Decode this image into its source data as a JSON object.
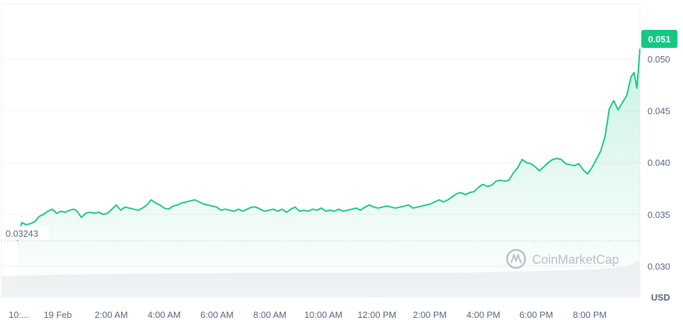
{
  "chart_data": {
    "type": "area",
    "currency": "USD",
    "open_price_label": "0.03243",
    "last_price_label": "0.051",
    "watermark": "CoinMarketCap",
    "ylim": [
      0.027,
      0.0535
    ],
    "y_ticks": [
      {
        "value": 0.05,
        "label": "0.050"
      },
      {
        "value": 0.045,
        "label": "0.045"
      },
      {
        "value": 0.04,
        "label": "0.040"
      },
      {
        "value": 0.035,
        "label": "0.035"
      },
      {
        "value": 0.03,
        "label": "0.030"
      }
    ],
    "x_ticks": [
      {
        "hours": 0.35,
        "label": "10:..."
      },
      {
        "hours": 2.0,
        "label": "19 Feb"
      },
      {
        "hours": 4.0,
        "label": "2:00 AM"
      },
      {
        "hours": 6.0,
        "label": "4:00 AM"
      },
      {
        "hours": 8.0,
        "label": "6:00 AM"
      },
      {
        "hours": 10.0,
        "label": "8:00 AM"
      },
      {
        "hours": 12.0,
        "label": "10:00 AM"
      },
      {
        "hours": 14.0,
        "label": "12:00 PM"
      },
      {
        "hours": 16.0,
        "label": "2:00 PM"
      },
      {
        "hours": 18.0,
        "label": "4:00 PM"
      },
      {
        "hours": 20.0,
        "label": "6:00 PM"
      },
      {
        "hours": 22.0,
        "label": "8:00 PM"
      }
    ],
    "price_series": [
      [
        0.0,
        0.03243
      ],
      [
        0.15,
        0.0342
      ],
      [
        0.3,
        0.034
      ],
      [
        0.45,
        0.0341
      ],
      [
        0.6,
        0.0343
      ],
      [
        0.75,
        0.0348
      ],
      [
        0.9,
        0.035
      ],
      [
        1.05,
        0.0353
      ],
      [
        1.2,
        0.0355
      ],
      [
        1.35,
        0.0351
      ],
      [
        1.5,
        0.0353
      ],
      [
        1.65,
        0.0352
      ],
      [
        1.8,
        0.0354
      ],
      [
        1.95,
        0.0355
      ],
      [
        2.05,
        0.0353
      ],
      [
        2.2,
        0.0347
      ],
      [
        2.35,
        0.0351
      ],
      [
        2.5,
        0.0352
      ],
      [
        2.65,
        0.0351
      ],
      [
        2.8,
        0.0352
      ],
      [
        2.95,
        0.035
      ],
      [
        3.1,
        0.0351
      ],
      [
        3.25,
        0.0355
      ],
      [
        3.4,
        0.0359
      ],
      [
        3.55,
        0.0354
      ],
      [
        3.7,
        0.0357
      ],
      [
        3.85,
        0.0356
      ],
      [
        4.0,
        0.0355
      ],
      [
        4.15,
        0.0354
      ],
      [
        4.3,
        0.0356
      ],
      [
        4.45,
        0.0359
      ],
      [
        4.6,
        0.0364
      ],
      [
        4.75,
        0.0361
      ],
      [
        4.9,
        0.0359
      ],
      [
        5.05,
        0.0356
      ],
      [
        5.2,
        0.0355
      ],
      [
        5.35,
        0.0358
      ],
      [
        5.5,
        0.0359
      ],
      [
        5.65,
        0.0361
      ],
      [
        5.8,
        0.0362
      ],
      [
        5.95,
        0.0363
      ],
      [
        6.1,
        0.0364
      ],
      [
        6.25,
        0.0362
      ],
      [
        6.4,
        0.036
      ],
      [
        6.55,
        0.0359
      ],
      [
        6.7,
        0.0358
      ],
      [
        6.85,
        0.0357
      ],
      [
        7.0,
        0.0354
      ],
      [
        7.15,
        0.0355
      ],
      [
        7.3,
        0.0354
      ],
      [
        7.45,
        0.0353
      ],
      [
        7.6,
        0.0355
      ],
      [
        7.75,
        0.0353
      ],
      [
        7.9,
        0.0355
      ],
      [
        8.05,
        0.0357
      ],
      [
        8.2,
        0.0357
      ],
      [
        8.35,
        0.0355
      ],
      [
        8.5,
        0.0353
      ],
      [
        8.65,
        0.0354
      ],
      [
        8.8,
        0.0355
      ],
      [
        8.95,
        0.0353
      ],
      [
        9.1,
        0.0355
      ],
      [
        9.25,
        0.0352
      ],
      [
        9.4,
        0.0355
      ],
      [
        9.55,
        0.0357
      ],
      [
        9.7,
        0.0353
      ],
      [
        9.85,
        0.0354
      ],
      [
        10.0,
        0.0353
      ],
      [
        10.15,
        0.0355
      ],
      [
        10.3,
        0.0354
      ],
      [
        10.45,
        0.0356
      ],
      [
        10.6,
        0.0353
      ],
      [
        10.75,
        0.0354
      ],
      [
        10.9,
        0.0353
      ],
      [
        11.05,
        0.0355
      ],
      [
        11.2,
        0.0353
      ],
      [
        11.35,
        0.0354
      ],
      [
        11.5,
        0.0355
      ],
      [
        11.65,
        0.0356
      ],
      [
        11.8,
        0.0354
      ],
      [
        11.95,
        0.0357
      ],
      [
        12.1,
        0.0359
      ],
      [
        12.25,
        0.0357
      ],
      [
        12.4,
        0.0356
      ],
      [
        12.55,
        0.0357
      ],
      [
        12.7,
        0.0358
      ],
      [
        12.85,
        0.0357
      ],
      [
        13.0,
        0.0356
      ],
      [
        13.15,
        0.0357
      ],
      [
        13.3,
        0.0358
      ],
      [
        13.45,
        0.0359
      ],
      [
        13.6,
        0.0356
      ],
      [
        13.75,
        0.0357
      ],
      [
        13.9,
        0.0358
      ],
      [
        14.05,
        0.0359
      ],
      [
        14.2,
        0.036
      ],
      [
        14.35,
        0.0362
      ],
      [
        14.5,
        0.0364
      ],
      [
        14.65,
        0.0362
      ],
      [
        14.8,
        0.0364
      ],
      [
        14.95,
        0.0367
      ],
      [
        15.1,
        0.037
      ],
      [
        15.25,
        0.0371
      ],
      [
        15.4,
        0.0369
      ],
      [
        15.55,
        0.0371
      ],
      [
        15.7,
        0.0372
      ],
      [
        15.85,
        0.0376
      ],
      [
        16.0,
        0.0379
      ],
      [
        16.15,
        0.0377
      ],
      [
        16.3,
        0.0378
      ],
      [
        16.45,
        0.0382
      ],
      [
        16.6,
        0.0383
      ],
      [
        16.75,
        0.0382
      ],
      [
        16.9,
        0.0383
      ],
      [
        17.05,
        0.039
      ],
      [
        17.2,
        0.0395
      ],
      [
        17.35,
        0.0403
      ],
      [
        17.5,
        0.04
      ],
      [
        17.65,
        0.0399
      ],
      [
        17.8,
        0.0396
      ],
      [
        17.95,
        0.0392
      ],
      [
        18.1,
        0.0396
      ],
      [
        18.25,
        0.04
      ],
      [
        18.4,
        0.0403
      ],
      [
        18.55,
        0.0404
      ],
      [
        18.7,
        0.0403
      ],
      [
        18.85,
        0.0399
      ],
      [
        19.0,
        0.0398
      ],
      [
        19.15,
        0.0397
      ],
      [
        19.3,
        0.0399
      ],
      [
        19.45,
        0.0393
      ],
      [
        19.6,
        0.0389
      ],
      [
        19.75,
        0.0395
      ],
      [
        19.9,
        0.0403
      ],
      [
        20.05,
        0.0411
      ],
      [
        20.2,
        0.0425
      ],
      [
        20.35,
        0.0452
      ],
      [
        20.5,
        0.046
      ],
      [
        20.65,
        0.0451
      ],
      [
        20.8,
        0.0458
      ],
      [
        20.95,
        0.0465
      ],
      [
        21.1,
        0.0483
      ],
      [
        21.2,
        0.0487
      ],
      [
        21.3,
        0.0472
      ],
      [
        21.4,
        0.051
      ]
    ],
    "volume_series": [
      [
        0.0,
        0.58
      ],
      [
        1.0,
        0.6
      ],
      [
        2.0,
        0.62
      ],
      [
        3.0,
        0.63
      ],
      [
        4.0,
        0.64
      ],
      [
        5.0,
        0.65
      ],
      [
        6.0,
        0.66
      ],
      [
        7.0,
        0.66
      ],
      [
        8.0,
        0.67
      ],
      [
        9.0,
        0.67
      ],
      [
        10.0,
        0.67
      ],
      [
        11.0,
        0.67
      ],
      [
        12.0,
        0.67
      ],
      [
        13.0,
        0.67
      ],
      [
        14.0,
        0.67
      ],
      [
        15.0,
        0.67
      ],
      [
        16.0,
        0.68
      ],
      [
        17.0,
        0.7
      ],
      [
        18.0,
        0.72
      ],
      [
        19.0,
        0.74
      ],
      [
        20.0,
        0.77
      ],
      [
        21.0,
        0.85
      ],
      [
        21.4,
        1.0
      ]
    ],
    "colors": {
      "line": "#16c784",
      "area_top": "#16c784",
      "label_bg": "#16c784",
      "grid": "#eff2f5",
      "volume": "#eff2f5",
      "axis_text": "#58667e",
      "dotted": "#a6b0c3",
      "watermark": "#b8bfca"
    },
    "grid": true
  }
}
